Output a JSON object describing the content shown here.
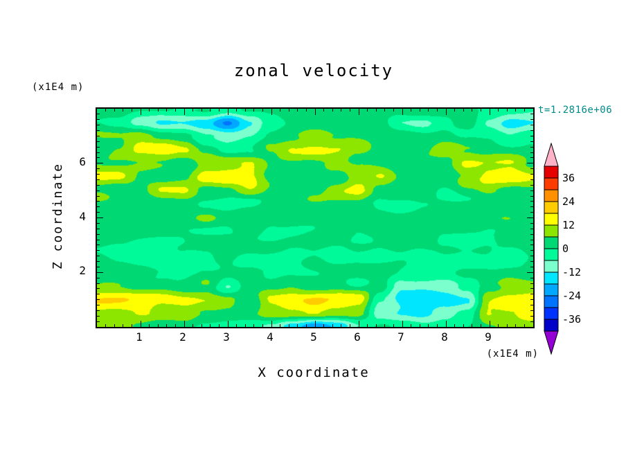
{
  "page": {
    "background": "#ffffff"
  },
  "title": "zonal velocity",
  "time_label": {
    "text": "t=1.2816e+06",
    "color": "#008b8b"
  },
  "x_axis": {
    "label": "X coordinate",
    "units": "(x1E4 m)",
    "range": [
      0,
      10
    ],
    "tick_labels": [
      "1",
      "2",
      "3",
      "4",
      "5",
      "6",
      "7",
      "8",
      "9"
    ],
    "tick_values": [
      1,
      2,
      3,
      4,
      5,
      6,
      7,
      8,
      9
    ],
    "minor_tick_step": 0.2
  },
  "y_axis": {
    "label": "Z coordinate",
    "units": "(x1E4 m)",
    "range": [
      0,
      8
    ],
    "tick_labels": [
      "2",
      "4",
      "6"
    ],
    "tick_values": [
      2,
      4,
      6
    ],
    "minor_tick_step": 0.2
  },
  "colorbar": {
    "labels": [
      "36",
      "24",
      "12",
      "0",
      "-12",
      "-24",
      "-36"
    ],
    "label_values": [
      36,
      24,
      12,
      0,
      -12,
      -24,
      -36
    ],
    "levels": [
      -42,
      -36,
      -30,
      -24,
      -18,
      -12,
      -6,
      0,
      6,
      12,
      18,
      24,
      30,
      36,
      42
    ],
    "band_colors_low_to_high": [
      "#0000c8",
      "#0032ff",
      "#0073ff",
      "#00a8ff",
      "#00e6ff",
      "#7bffcd",
      "#00fa9a",
      "#00d973",
      "#8ce600",
      "#ffff00",
      "#ffcc00",
      "#ff9100",
      "#ff3c00",
      "#e60000"
    ],
    "under_arrow_color": "#9400d3",
    "over_arrow_color": "#ffb3c8",
    "outline_color": "#000000"
  },
  "chart_data": {
    "type": "heatmap",
    "subtype": "filled_contour",
    "title": "zonal velocity",
    "xlabel": "X coordinate",
    "ylabel": "Z coordinate",
    "x_units_scale": "(x1E4 m)",
    "z_units_scale": "(x1E4 m)",
    "time_annotation": "t=1.2816e+06",
    "x_range": [
      0,
      10
    ],
    "z_range": [
      0,
      8
    ],
    "contour_levels": [
      -42,
      -36,
      -30,
      -24,
      -18,
      -12,
      -6,
      0,
      6,
      12,
      18,
      24,
      30,
      36,
      42
    ],
    "legend_position": "right-colorbar",
    "grid": {
      "nx": 21,
      "nz": 17,
      "x_start": 0,
      "x_step": 0.5,
      "z_start": 8,
      "z_step": -0.5,
      "order": "rows_top_to_bottom",
      "values": [
        [
          3,
          3,
          2,
          1,
          0,
          -1,
          -2,
          1,
          3,
          4,
          3,
          3,
          4,
          3,
          3,
          4,
          3,
          3,
          -2,
          -6,
          -5
        ],
        [
          2,
          0,
          -9,
          -14,
          -13,
          -15,
          -26,
          -14,
          -4,
          2,
          3,
          2,
          3,
          3,
          -5,
          -7,
          -3,
          1,
          -8,
          -14,
          -12
        ],
        [
          3,
          5,
          8,
          6,
          2,
          -4,
          -8,
          -3,
          2,
          5,
          6,
          5,
          4,
          3,
          1,
          2,
          3,
          3,
          0,
          -5,
          -3
        ],
        [
          3,
          8,
          15,
          16,
          12,
          2,
          -4,
          -2,
          6,
          13,
          15,
          14,
          10,
          5,
          3,
          4,
          9,
          4,
          2,
          1,
          2
        ],
        [
          6,
          4,
          6,
          4,
          3,
          10,
          13,
          12,
          6,
          4,
          5,
          6,
          4,
          2,
          3,
          4,
          5,
          13,
          14,
          13,
          6
        ],
        [
          14,
          13,
          6,
          3,
          4,
          14,
          16,
          14,
          5,
          3,
          4,
          2,
          12,
          13,
          4,
          4,
          3,
          8,
          14,
          15,
          13
        ],
        [
          5,
          4,
          3,
          13,
          12,
          4,
          3,
          11,
          3,
          2,
          3,
          12,
          13,
          4,
          2,
          4,
          -3,
          4,
          6,
          5,
          4
        ],
        [
          3,
          2,
          2,
          4,
          3,
          1,
          -2,
          -1,
          2,
          3,
          4,
          3,
          2,
          -2,
          -3,
          1,
          2,
          3,
          2,
          3,
          3
        ],
        [
          7,
          4,
          3,
          2,
          3,
          4,
          2,
          3,
          4,
          3,
          2,
          3,
          4,
          3,
          2,
          3,
          4,
          3,
          4,
          3,
          4
        ],
        [
          3,
          2,
          3,
          3,
          2,
          1,
          2,
          3,
          -1,
          -2,
          1,
          2,
          -2,
          -1,
          2,
          3,
          2,
          1,
          2,
          3,
          2
        ],
        [
          2,
          1,
          -2,
          -3,
          -1,
          2,
          3,
          2,
          1,
          2,
          3,
          2,
          1,
          2,
          3,
          2,
          -2,
          -3,
          -2,
          1,
          2
        ],
        [
          1,
          -2,
          -3,
          -2,
          -3,
          -1,
          1,
          -2,
          -3,
          -2,
          -1,
          -3,
          -2,
          -1,
          -2,
          -3,
          -2,
          -1,
          -2,
          -3,
          -1
        ],
        [
          3,
          2,
          1,
          -2,
          -1,
          2,
          3,
          2,
          -2,
          -1,
          1,
          2,
          3,
          2,
          1,
          -1,
          -2,
          1,
          2,
          3,
          2
        ],
        [
          8,
          6,
          4,
          2,
          1,
          3,
          -7,
          2,
          4,
          5,
          4,
          3,
          2,
          3,
          -9,
          -11,
          -9,
          -6,
          3,
          6,
          8
        ],
        [
          16,
          17,
          16,
          15,
          14,
          13,
          9,
          3,
          14,
          16,
          17,
          16,
          14,
          -6,
          -15,
          -16,
          -14,
          -10,
          13,
          16,
          17
        ],
        [
          12,
          13,
          12,
          10,
          8,
          6,
          3,
          2,
          8,
          13,
          14,
          12,
          8,
          -8,
          -12,
          -13,
          -11,
          -6,
          10,
          13,
          14
        ],
        [
          6,
          6,
          5,
          4,
          3,
          -2,
          -4,
          -2,
          -6,
          -16,
          -25,
          -18,
          -6,
          1,
          -3,
          -5,
          -3,
          2,
          6,
          8,
          9
        ]
      ]
    },
    "texture_noise_modes": [
      {
        "a": 1.8,
        "kx": 1.1,
        "kz": 5.2,
        "p": 0.9
      },
      {
        "a": 1.3,
        "kx": 2.7,
        "kz": 8.1,
        "p": 2.4
      },
      {
        "a": 0.9,
        "kx": 6.3,
        "kz": 2.9,
        "p": 4.7
      }
    ]
  }
}
